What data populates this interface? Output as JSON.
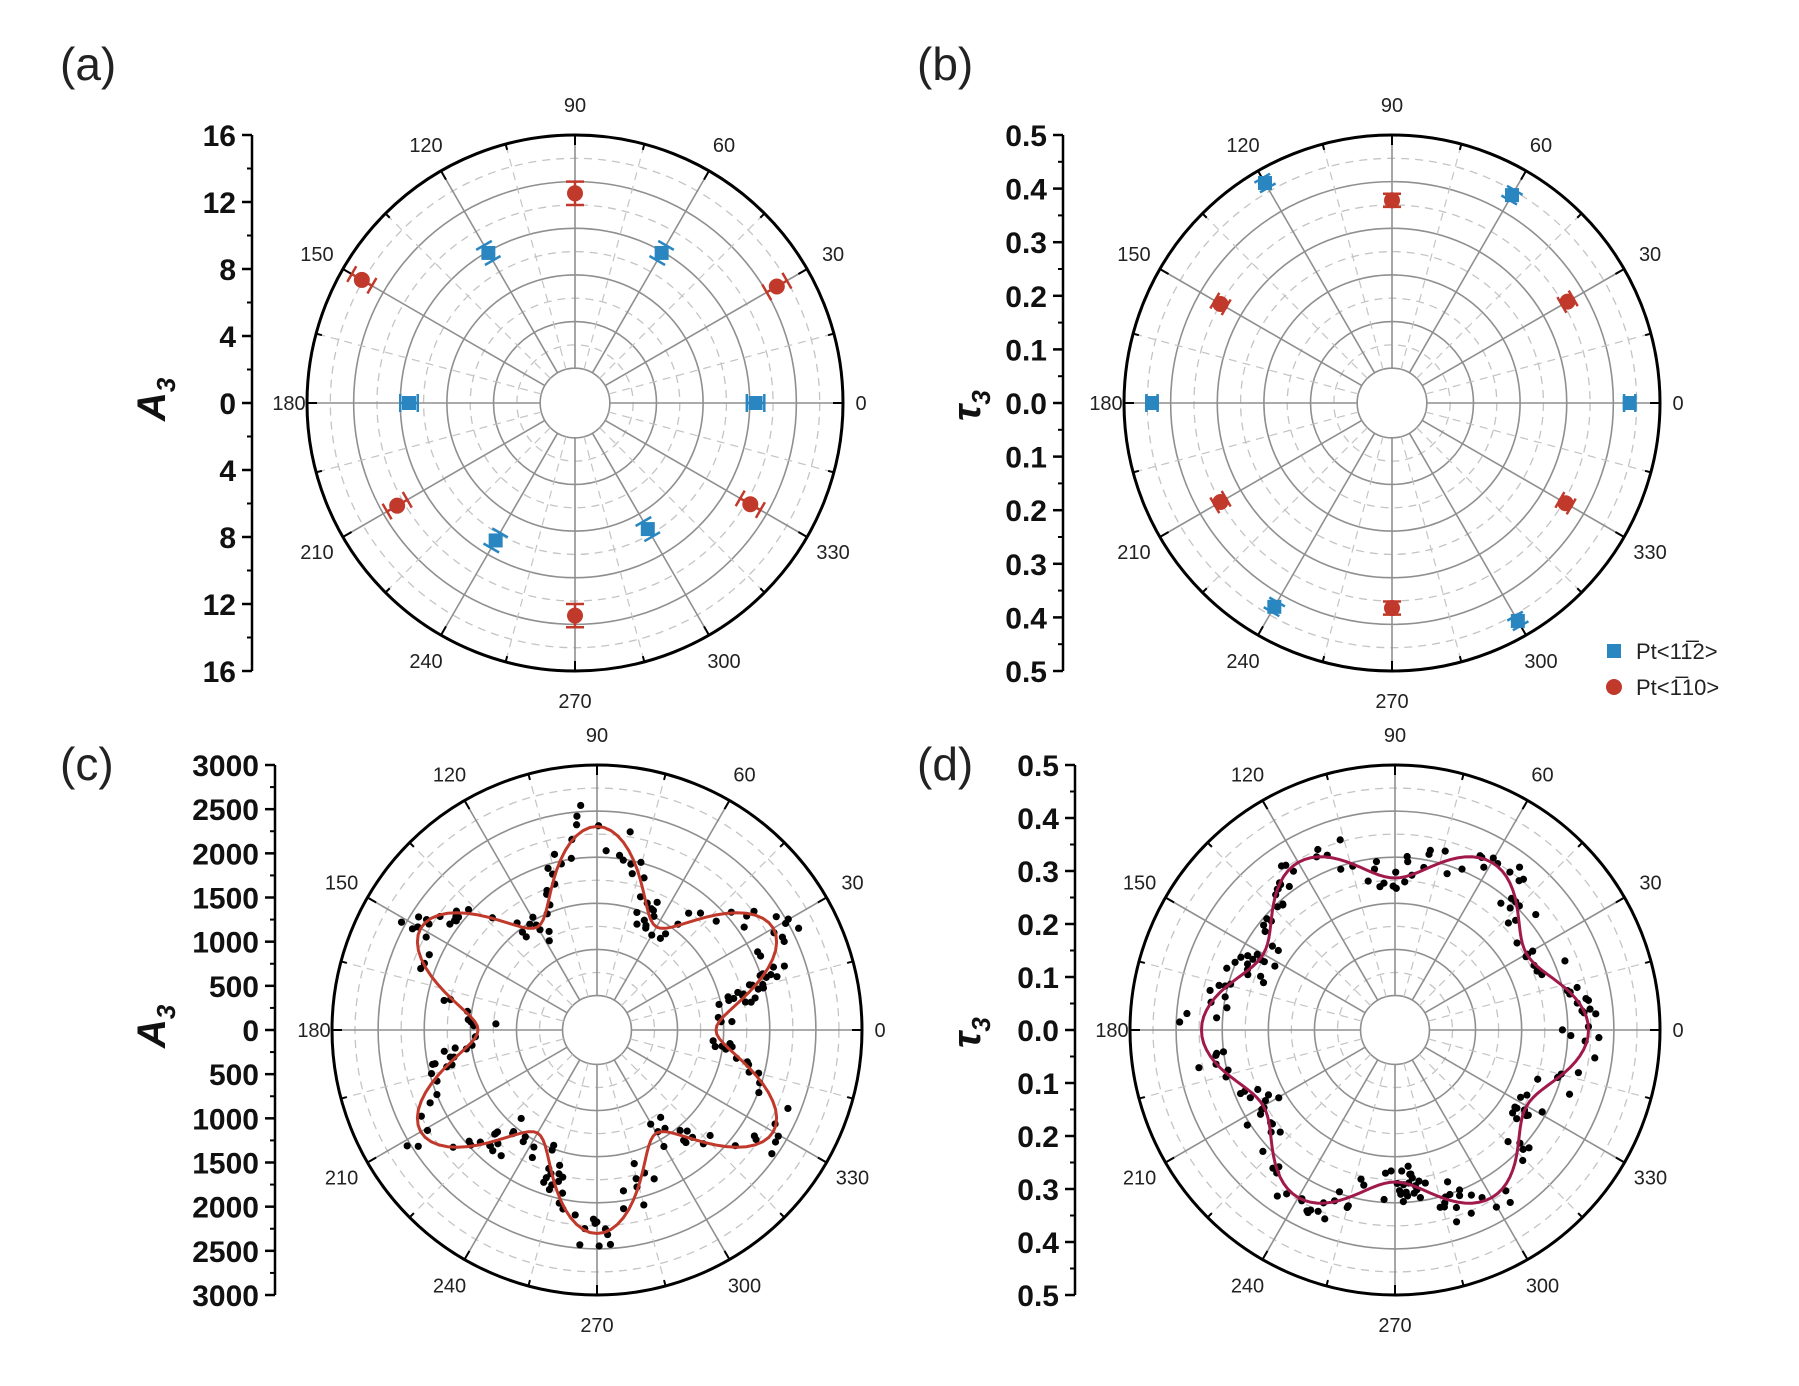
{
  "colors": {
    "blue": "#2a86c0",
    "red": "#c0392b",
    "fit_c": "#c0392b",
    "fit_d": "#a0194a",
    "grid_solid": "#8f8f8f",
    "grid_dashed": "#c4c4c4",
    "dots": "#000000"
  },
  "legend": [
    {
      "label": "Pt<11̅2>",
      "marker": "square",
      "color": "#2a86c0"
    },
    {
      "label": "Pt<1̅10>",
      "marker": "circle",
      "color": "#c0392b"
    }
  ],
  "chart_data": [
    {
      "label": "(a)",
      "type": "scatter",
      "polar": true,
      "ylabel": "A",
      "ylabel_sub": "3",
      "rmax": 16,
      "ticks": [
        16,
        12,
        8,
        4,
        0,
        4,
        8,
        12,
        16
      ],
      "angle_labels": [
        "0",
        "30",
        "60",
        "90",
        "120",
        "150",
        "180",
        "210",
        "240",
        "270",
        "300",
        "330"
      ],
      "series": [
        {
          "name": "Pt<11̅2>",
          "marker": "square",
          "color": "#2a86c0",
          "points": [
            {
              "theta": 0,
              "r": 10
            },
            {
              "theta": 60,
              "r": 9.5
            },
            {
              "theta": 120,
              "r": 9.5
            },
            {
              "theta": 180,
              "r": 9
            },
            {
              "theta": 240,
              "r": 8.5
            },
            {
              "theta": 300,
              "r": 7.6
            }
          ],
          "err": 0.6
        },
        {
          "name": "Pt<1̅10>",
          "marker": "circle",
          "color": "#c0392b",
          "points": [
            {
              "theta": 30,
              "r": 13.6
            },
            {
              "theta": 90,
              "r": 12
            },
            {
              "theta": 150,
              "r": 14.5
            },
            {
              "theta": 210,
              "r": 11.7
            },
            {
              "theta": 270,
              "r": 12.2
            },
            {
              "theta": 330,
              "r": 11.5
            }
          ],
          "err": 0.8
        }
      ]
    },
    {
      "label": "(b)",
      "type": "scatter",
      "polar": true,
      "ylabel": "τ",
      "ylabel_sub": "3",
      "rmax": 0.5,
      "ticks": [
        "0.5",
        "0.4",
        "0.3",
        "0.2",
        "0.1",
        "0.0",
        "0.1",
        "0.2",
        "0.3",
        "0.4",
        "0.5"
      ],
      "angle_labels": [
        "0",
        "30",
        "60",
        "90",
        "120",
        "150",
        "180",
        "210",
        "240",
        "270",
        "300",
        "330"
      ],
      "series": [
        {
          "name": "Pt<11̅2>",
          "marker": "square",
          "color": "#2a86c0",
          "points": [
            {
              "theta": 0,
              "r": 0.435
            },
            {
              "theta": 60,
              "r": 0.44
            },
            {
              "theta": 120,
              "r": 0.47
            },
            {
              "theta": 180,
              "r": 0.44
            },
            {
              "theta": 240,
              "r": 0.43
            },
            {
              "theta": 300,
              "r": 0.465
            }
          ],
          "err": 0.012
        },
        {
          "name": "Pt<1̅10>",
          "marker": "circle",
          "color": "#c0392b",
          "points": [
            {
              "theta": 30,
              "r": 0.36
            },
            {
              "theta": 90,
              "r": 0.36
            },
            {
              "theta": 150,
              "r": 0.35
            },
            {
              "theta": 210,
              "r": 0.35
            },
            {
              "theta": 270,
              "r": 0.365
            },
            {
              "theta": 330,
              "r": 0.355
            }
          ],
          "err": 0.014
        }
      ]
    },
    {
      "label": "(c)",
      "type": "scatter",
      "polar": true,
      "ylabel": "A",
      "ylabel_sub": "3",
      "rmax": 3000,
      "ticks": [
        "3000",
        "2500",
        "2000",
        "1500",
        "1000",
        "500",
        "0",
        "500",
        "1000",
        "1500",
        "2000",
        "2500",
        "3000"
      ],
      "angle_labels": [
        "0",
        "30",
        "60",
        "90",
        "120",
        "150",
        "180",
        "210",
        "240",
        "270",
        "300",
        "330"
      ],
      "fit": {
        "mean": 1650,
        "amp": 550,
        "harmonic": 6,
        "phase_deg": 90,
        "color": "#c0392b"
      },
      "scatter_seed": 17,
      "scatter_count": 220,
      "scatter_noise": 170
    },
    {
      "label": "(d)",
      "type": "scatter",
      "polar": true,
      "ylabel": "τ",
      "ylabel_sub": "3",
      "rmax": 0.5,
      "ticks": [
        "0.5",
        "0.4",
        "0.3",
        "0.2",
        "0.1",
        "0.0",
        "0.1",
        "0.2",
        "0.3",
        "0.4",
        "0.5"
      ],
      "angle_labels": [
        "0",
        "30",
        "60",
        "90",
        "120",
        "150",
        "180",
        "210",
        "240",
        "270",
        "300",
        "330"
      ],
      "fit": {
        "mean": 0.3,
        "amp": 0.045,
        "harmonic": 6,
        "phase_deg": 0,
        "color": "#a0194a"
      },
      "scatter_seed": 41,
      "scatter_count": 210,
      "scatter_noise": 0.028
    }
  ]
}
